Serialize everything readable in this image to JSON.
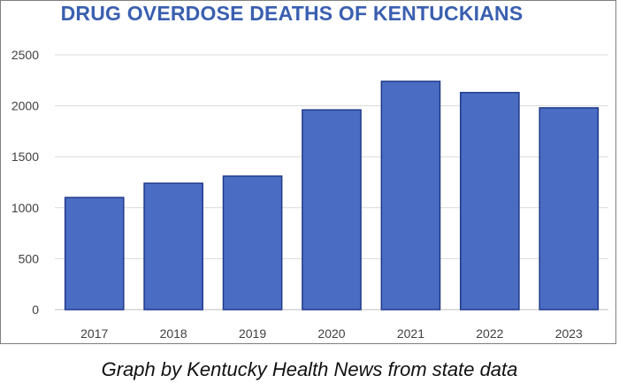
{
  "chart_data": {
    "type": "bar",
    "title": "DRUG OVERDOSE DEATHS OF KENTUCKIANS",
    "categories": [
      "2017",
      "2018",
      "2019",
      "2020",
      "2021",
      "2022",
      "2023"
    ],
    "values": [
      1100,
      1240,
      1310,
      1960,
      2240,
      2130,
      1980
    ],
    "xlabel": "",
    "ylabel": "",
    "ylim": [
      0,
      2500
    ],
    "yticks": [
      0,
      500,
      1000,
      1500,
      2000,
      2500
    ],
    "grid": true,
    "bar_color": "#4a6cc2",
    "bar_edge_color": "#203a8a"
  },
  "caption": "Graph by Kentucky Health News from state data"
}
